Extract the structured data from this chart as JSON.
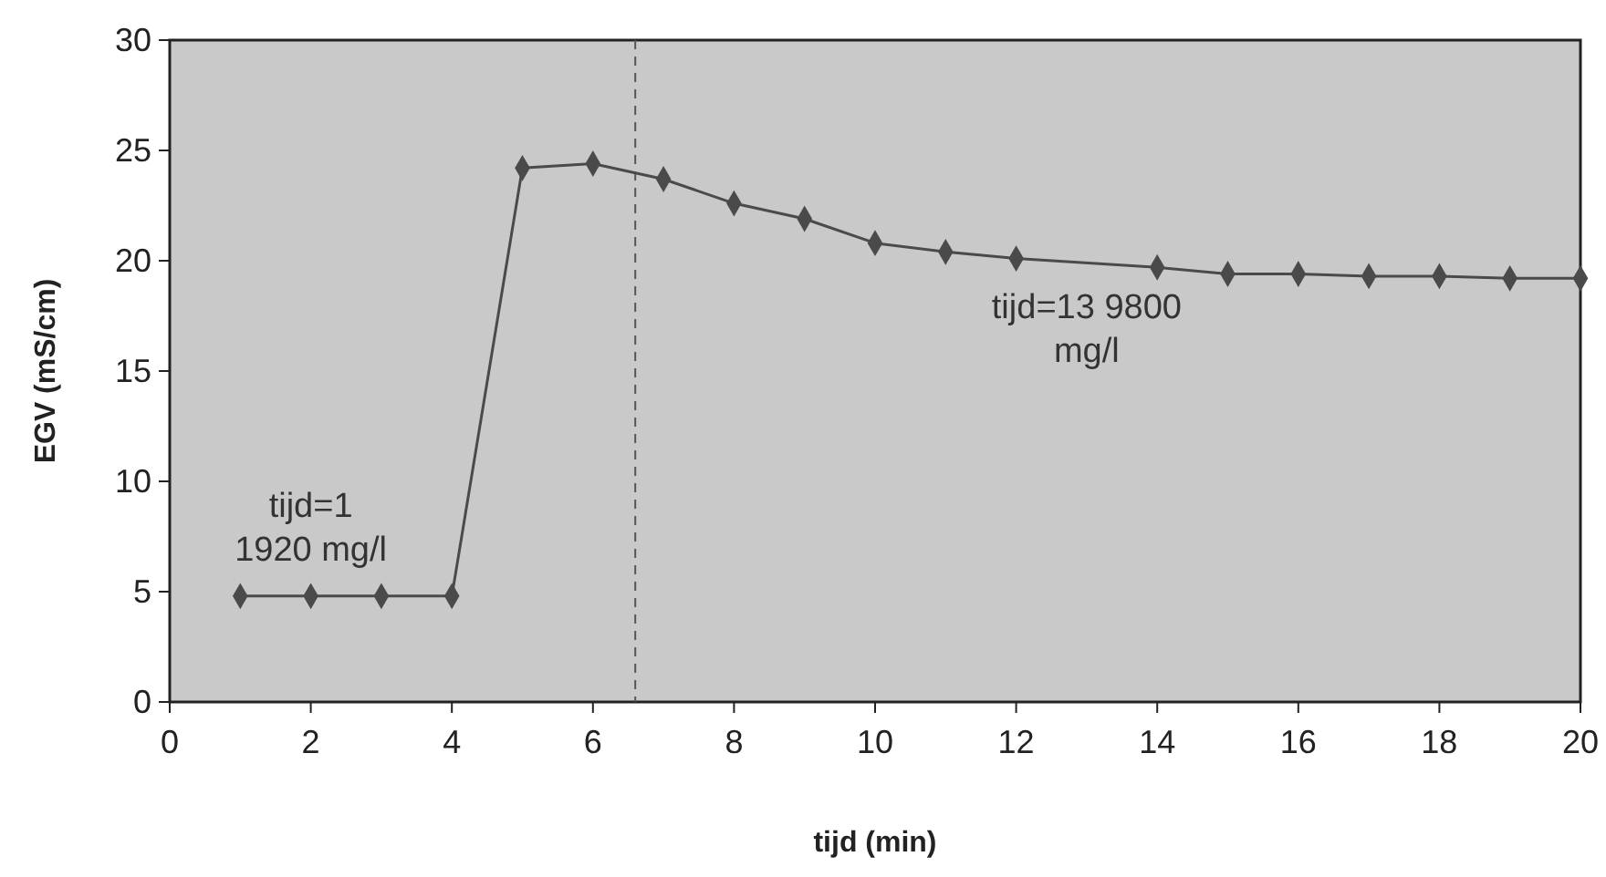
{
  "chart_data": {
    "type": "line",
    "xlabel": "tijd (min)",
    "ylabel": "EGV (mS/cm)",
    "x": [
      1,
      2,
      3,
      4,
      5,
      6,
      7,
      8,
      9,
      10,
      11,
      12,
      14,
      15,
      16,
      17,
      18,
      19,
      20
    ],
    "series": [
      {
        "color": "#4a4a4a",
        "values": [
          4.8,
          4.8,
          4.8,
          4.8,
          24.2,
          24.4,
          23.7,
          22.6,
          21.9,
          20.8,
          20.4,
          20.1,
          19.7,
          19.4,
          19.4,
          19.3,
          19.3,
          19.2,
          19.2
        ]
      }
    ],
    "xlim": [
      0,
      20
    ],
    "xticks": [
      0,
      2,
      4,
      6,
      8,
      10,
      12,
      14,
      16,
      18,
      20
    ],
    "ylim": [
      0,
      30
    ],
    "yticks": [
      0,
      5,
      10,
      15,
      20,
      25,
      30
    ],
    "ref_lines": [
      {
        "axis": "x",
        "value": 6.6,
        "line_style": "dashed",
        "color": "#555555"
      }
    ],
    "annotations": [
      "tijd=1\n1920 mg/l",
      "tijd=13 9800\nmg/l"
    ],
    "marker": "diamond",
    "line_style": "solid",
    "grid": false
  }
}
